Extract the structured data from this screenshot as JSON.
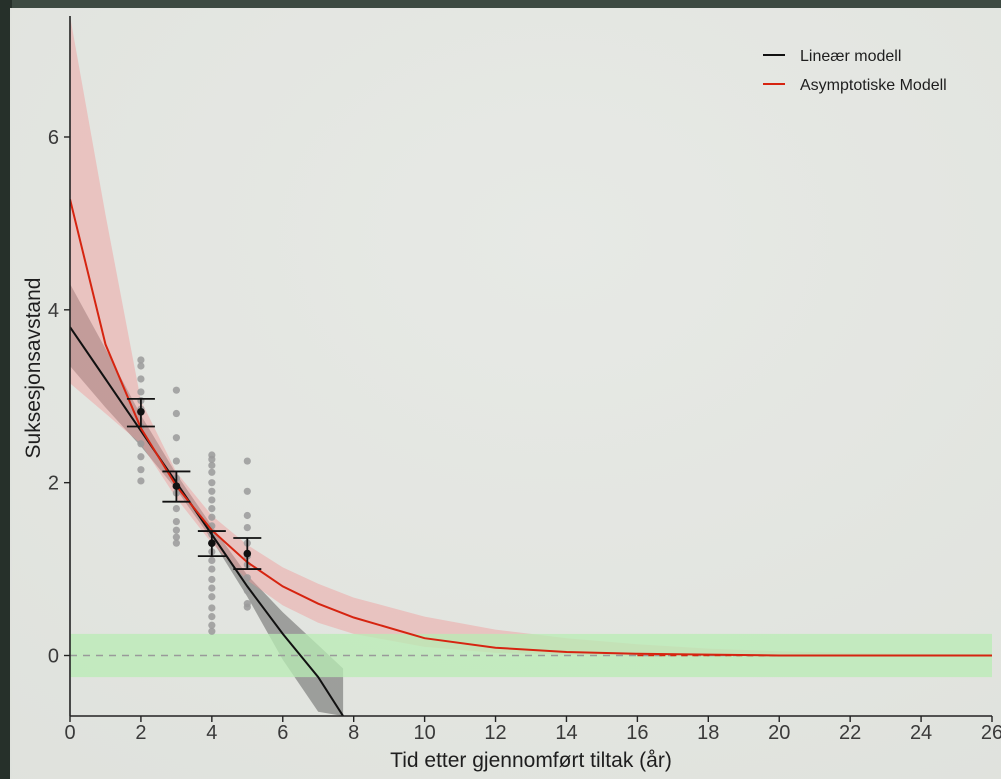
{
  "chart_data": {
    "type": "line",
    "title": "",
    "xlabel": "Tid etter gjennomført tiltak (år)",
    "ylabel": "Suksesjonsavstand",
    "xlim": [
      0,
      26
    ],
    "ylim": [
      -0.7,
      7.4
    ],
    "x_ticks": [
      0,
      2,
      4,
      6,
      8,
      10,
      12,
      14,
      16,
      18,
      20,
      22,
      24,
      26
    ],
    "y_ticks": [
      0,
      2,
      4,
      6
    ],
    "grid": false,
    "legend_position": "top-right",
    "reference": {
      "y": 0,
      "style": "dashed",
      "band": [
        -0.25,
        0.25
      ],
      "band_color": "#b8ecb4"
    },
    "series": [
      {
        "name": "Lineær modell",
        "color": "#111111",
        "band_color": "#4a4a4a",
        "x": [
          0,
          1,
          2,
          3,
          4,
          5,
          6,
          7,
          7.7
        ],
        "y": [
          3.8,
          3.2,
          2.6,
          2.0,
          1.4,
          0.8,
          0.25,
          -0.25,
          -0.7
        ],
        "lower": [
          3.35,
          2.87,
          2.42,
          1.92,
          1.34,
          0.68,
          -0.05,
          -0.65,
          -0.7
        ],
        "upper": [
          4.3,
          3.55,
          2.78,
          2.1,
          1.5,
          0.93,
          0.5,
          0.12,
          -0.15
        ]
      },
      {
        "name": "Asymptotiske Modell",
        "color": "#d62410",
        "band_color": "#f09a9a",
        "x": [
          0,
          1,
          2,
          3,
          4,
          5,
          6,
          7,
          8,
          10,
          12,
          14,
          16,
          18,
          20,
          22,
          24,
          26
        ],
        "y": [
          5.28,
          3.6,
          2.63,
          1.96,
          1.45,
          1.08,
          0.8,
          0.6,
          0.44,
          0.2,
          0.09,
          0.04,
          0.02,
          0.01,
          0.0,
          0.0,
          0.0,
          0.0
        ],
        "lower": [
          3.15,
          2.8,
          2.45,
          1.82,
          1.3,
          0.87,
          0.58,
          0.38,
          0.25,
          0.1,
          0.03,
          0.01,
          0.0,
          0.0,
          0.0,
          0.0,
          0.0,
          0.0
        ],
        "upper": [
          7.6,
          5.1,
          2.95,
          2.12,
          1.62,
          1.28,
          1.02,
          0.83,
          0.67,
          0.45,
          0.3,
          0.2,
          0.13,
          0.08,
          0.05,
          0.03,
          0.02,
          0.01
        ]
      }
    ],
    "means": [
      {
        "x": 2,
        "y": 2.82,
        "low": 2.65,
        "high": 2.97
      },
      {
        "x": 3,
        "y": 1.96,
        "low": 1.78,
        "high": 2.13
      },
      {
        "x": 4,
        "y": 1.3,
        "low": 1.15,
        "high": 1.44
      },
      {
        "x": 5,
        "y": 1.18,
        "low": 1.0,
        "high": 1.36
      }
    ],
    "observations": [
      {
        "x": 2,
        "y": [
          3.42,
          3.35,
          3.2,
          3.05,
          2.95,
          2.85,
          2.65,
          2.45,
          2.3,
          2.15,
          2.02
        ]
      },
      {
        "x": 3,
        "y": [
          3.07,
          2.8,
          2.52,
          2.25,
          2.05,
          1.88,
          1.7,
          1.55,
          1.45,
          1.37,
          1.3
        ]
      },
      {
        "x": 4,
        "y": [
          2.32,
          2.27,
          2.2,
          2.12,
          2.0,
          1.9,
          1.8,
          1.7,
          1.6,
          1.5,
          1.4,
          1.3,
          1.2,
          1.1,
          1.0,
          0.88,
          0.78,
          0.68,
          0.55,
          0.45,
          0.35,
          0.28
        ]
      },
      {
        "x": 5,
        "y": [
          2.25,
          1.9,
          1.62,
          1.48,
          1.3,
          1.15,
          1.05,
          0.9,
          0.75,
          0.6,
          0.56
        ]
      }
    ],
    "point_color": "#9a9a9a"
  }
}
